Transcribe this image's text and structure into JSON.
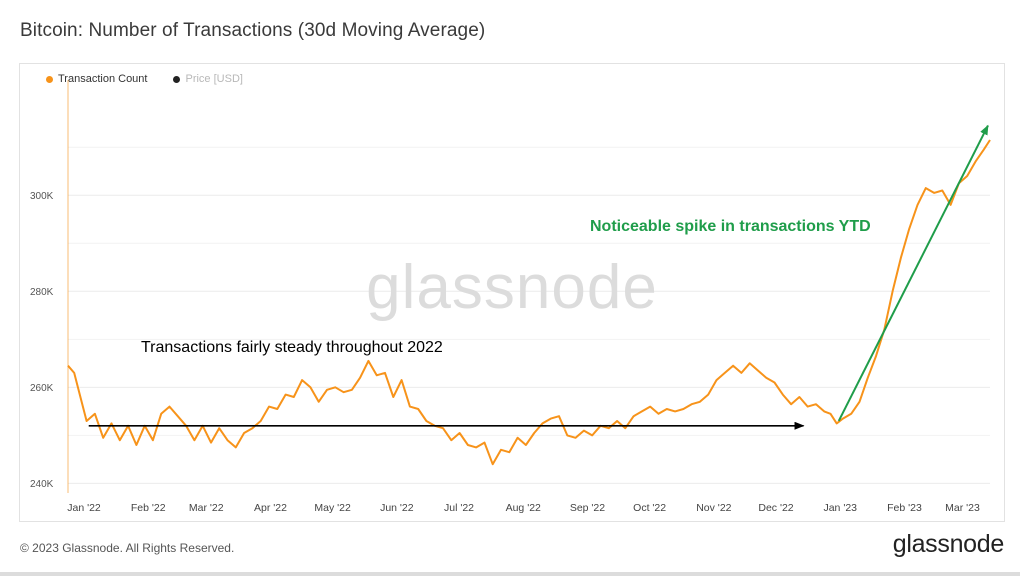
{
  "title": "Bitcoin: Number of Transactions (30d Moving Average)",
  "legend": [
    {
      "label": "Transaction Count",
      "color": "#f7931a",
      "active": true
    },
    {
      "label": "Price [USD]",
      "color": "#222222",
      "active": false
    }
  ],
  "watermark": "glassnode",
  "footer": {
    "copyright": "© 2023 Glassnode. All Rights Reserved.",
    "logo": "glassnode"
  },
  "colors": {
    "series": "#f7931a",
    "annotation_green": "#1f9d4a",
    "annotation_black": "#000000"
  },
  "chart_data": {
    "type": "line",
    "yticks": [
      {
        "value": 240000,
        "label": "240K"
      },
      {
        "value": 260000,
        "label": "260K"
      },
      {
        "value": 280000,
        "label": "280K"
      },
      {
        "value": 300000,
        "label": "300K"
      }
    ],
    "ylim": [
      238000,
      324000
    ],
    "xlim": [
      "2022-01-01",
      "2023-03-22"
    ],
    "xticks": [
      {
        "date": "2022-01-01",
        "label": "Jan '22"
      },
      {
        "date": "2022-02-01",
        "label": "Feb '22"
      },
      {
        "date": "2022-03-01",
        "label": "Mar '22"
      },
      {
        "date": "2022-04-01",
        "label": "Apr '22"
      },
      {
        "date": "2022-05-01",
        "label": "May '22"
      },
      {
        "date": "2022-06-01",
        "label": "Jun '22"
      },
      {
        "date": "2022-07-01",
        "label": "Jul '22"
      },
      {
        "date": "2022-08-01",
        "label": "Aug '22"
      },
      {
        "date": "2022-09-01",
        "label": "Sep '22"
      },
      {
        "date": "2022-10-01",
        "label": "Oct '22"
      },
      {
        "date": "2022-11-01",
        "label": "Nov '22"
      },
      {
        "date": "2022-12-01",
        "label": "Dec '22"
      },
      {
        "date": "2023-01-01",
        "label": "Jan '23"
      },
      {
        "date": "2023-02-01",
        "label": "Feb '23"
      },
      {
        "date": "2023-03-01",
        "label": "Mar '23"
      }
    ],
    "series": [
      {
        "name": "Transaction Count",
        "points": [
          [
            "2022-01-01",
            264500
          ],
          [
            "2022-01-04",
            263000
          ],
          [
            "2022-01-07",
            258000
          ],
          [
            "2022-01-10",
            253000
          ],
          [
            "2022-01-14",
            254500
          ],
          [
            "2022-01-18",
            249500
          ],
          [
            "2022-01-22",
            252500
          ],
          [
            "2022-01-26",
            249000
          ],
          [
            "2022-01-30",
            252000
          ],
          [
            "2022-02-03",
            248000
          ],
          [
            "2022-02-07",
            252000
          ],
          [
            "2022-02-11",
            249000
          ],
          [
            "2022-02-15",
            254500
          ],
          [
            "2022-02-19",
            256000
          ],
          [
            "2022-02-23",
            254000
          ],
          [
            "2022-02-27",
            252000
          ],
          [
            "2022-03-03",
            249000
          ],
          [
            "2022-03-07",
            252000
          ],
          [
            "2022-03-11",
            248500
          ],
          [
            "2022-03-15",
            251500
          ],
          [
            "2022-03-19",
            249000
          ],
          [
            "2022-03-23",
            247500
          ],
          [
            "2022-03-27",
            250500
          ],
          [
            "2022-03-31",
            251500
          ],
          [
            "2022-04-04",
            253000
          ],
          [
            "2022-04-08",
            256000
          ],
          [
            "2022-04-12",
            255500
          ],
          [
            "2022-04-16",
            258500
          ],
          [
            "2022-04-20",
            258000
          ],
          [
            "2022-04-24",
            261500
          ],
          [
            "2022-04-28",
            260000
          ],
          [
            "2022-05-02",
            257000
          ],
          [
            "2022-05-06",
            259500
          ],
          [
            "2022-05-10",
            260000
          ],
          [
            "2022-05-14",
            259000
          ],
          [
            "2022-05-18",
            259500
          ],
          [
            "2022-05-22",
            262000
          ],
          [
            "2022-05-26",
            265500
          ],
          [
            "2022-05-30",
            262500
          ],
          [
            "2022-06-03",
            263000
          ],
          [
            "2022-06-07",
            258000
          ],
          [
            "2022-06-11",
            261500
          ],
          [
            "2022-06-15",
            256000
          ],
          [
            "2022-06-19",
            255500
          ],
          [
            "2022-06-23",
            253000
          ],
          [
            "2022-06-27",
            252000
          ],
          [
            "2022-07-01",
            251500
          ],
          [
            "2022-07-05",
            249000
          ],
          [
            "2022-07-09",
            250500
          ],
          [
            "2022-07-13",
            248000
          ],
          [
            "2022-07-17",
            247500
          ],
          [
            "2022-07-21",
            248500
          ],
          [
            "2022-07-25",
            244000
          ],
          [
            "2022-07-29",
            247000
          ],
          [
            "2022-08-02",
            246500
          ],
          [
            "2022-08-06",
            249500
          ],
          [
            "2022-08-10",
            248000
          ],
          [
            "2022-08-14",
            250500
          ],
          [
            "2022-08-18",
            252500
          ],
          [
            "2022-08-22",
            253500
          ],
          [
            "2022-08-26",
            254000
          ],
          [
            "2022-08-30",
            250000
          ],
          [
            "2022-09-03",
            249500
          ],
          [
            "2022-09-07",
            251000
          ],
          [
            "2022-09-11",
            250000
          ],
          [
            "2022-09-15",
            252000
          ],
          [
            "2022-09-19",
            251500
          ],
          [
            "2022-09-23",
            253000
          ],
          [
            "2022-09-27",
            251500
          ],
          [
            "2022-10-01",
            254000
          ],
          [
            "2022-10-05",
            255000
          ],
          [
            "2022-10-09",
            256000
          ],
          [
            "2022-10-13",
            254500
          ],
          [
            "2022-10-17",
            255500
          ],
          [
            "2022-10-21",
            255000
          ],
          [
            "2022-10-25",
            255500
          ],
          [
            "2022-10-29",
            256500
          ],
          [
            "2022-11-02",
            257000
          ],
          [
            "2022-11-06",
            258500
          ],
          [
            "2022-11-10",
            261500
          ],
          [
            "2022-11-14",
            263000
          ],
          [
            "2022-11-18",
            264500
          ],
          [
            "2022-11-22",
            263000
          ],
          [
            "2022-11-26",
            265000
          ],
          [
            "2022-11-30",
            263500
          ],
          [
            "2022-12-04",
            262000
          ],
          [
            "2022-12-08",
            261000
          ],
          [
            "2022-12-12",
            258500
          ],
          [
            "2022-12-16",
            256500
          ],
          [
            "2022-12-20",
            258000
          ],
          [
            "2022-12-24",
            256000
          ],
          [
            "2022-12-28",
            256500
          ],
          [
            "2023-01-01",
            255000
          ],
          [
            "2023-01-04",
            254500
          ],
          [
            "2023-01-07",
            252500
          ],
          [
            "2023-01-10",
            253500
          ],
          [
            "2023-01-14",
            254500
          ],
          [
            "2023-01-18",
            257000
          ],
          [
            "2023-01-22",
            262000
          ],
          [
            "2023-01-26",
            266500
          ],
          [
            "2023-01-30",
            272000
          ],
          [
            "2023-02-03",
            280000
          ],
          [
            "2023-02-07",
            287000
          ],
          [
            "2023-02-11",
            293000
          ],
          [
            "2023-02-15",
            298000
          ],
          [
            "2023-02-19",
            301500
          ],
          [
            "2023-02-23",
            300500
          ],
          [
            "2023-02-27",
            301000
          ],
          [
            "2023-03-03",
            298000
          ],
          [
            "2023-03-07",
            302500
          ],
          [
            "2023-03-11",
            304000
          ],
          [
            "2023-03-15",
            307000
          ],
          [
            "2023-03-19",
            309500
          ],
          [
            "2023-03-22",
            311500
          ]
        ]
      }
    ],
    "annotations": [
      {
        "text": "Transactions fairly steady throughout 2022",
        "color": "#000000",
        "arrow": {
          "from": [
            "2022-01-11",
            252000
          ],
          "to": [
            "2022-12-22",
            252000
          ]
        }
      },
      {
        "text": "Noticeable spike in transactions YTD",
        "color": "#1f9d4a",
        "arrow": {
          "from": [
            "2023-01-08",
            253000
          ],
          "to": [
            "2023-03-21",
            314500
          ]
        }
      }
    ]
  }
}
